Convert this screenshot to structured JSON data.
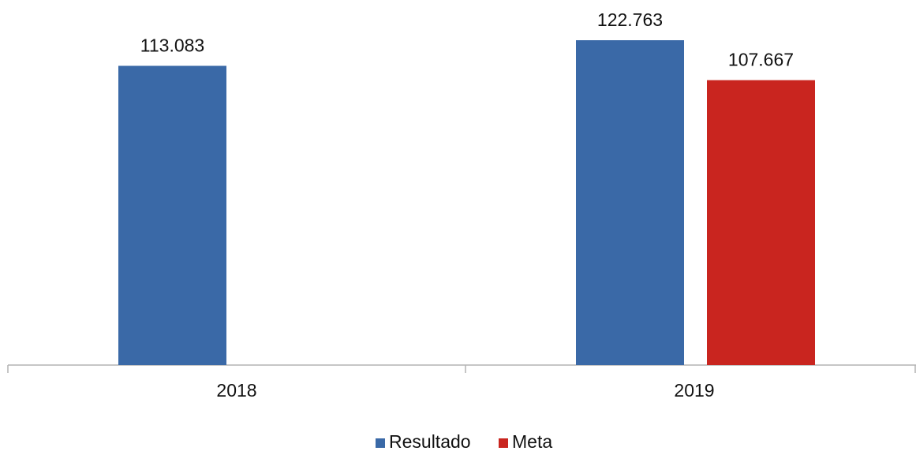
{
  "chart_data": {
    "type": "bar",
    "categories": [
      "2018",
      "2019"
    ],
    "series": [
      {
        "name": "Resultado",
        "color": "#3a69a7",
        "values": [
          113083,
          122763
        ],
        "value_labels": [
          "113.083",
          "122.763"
        ]
      },
      {
        "name": "Meta",
        "color": "#c9251f",
        "values": [
          null,
          107667
        ],
        "value_labels": [
          null,
          "107.667"
        ]
      }
    ],
    "legend": "bottom"
  }
}
